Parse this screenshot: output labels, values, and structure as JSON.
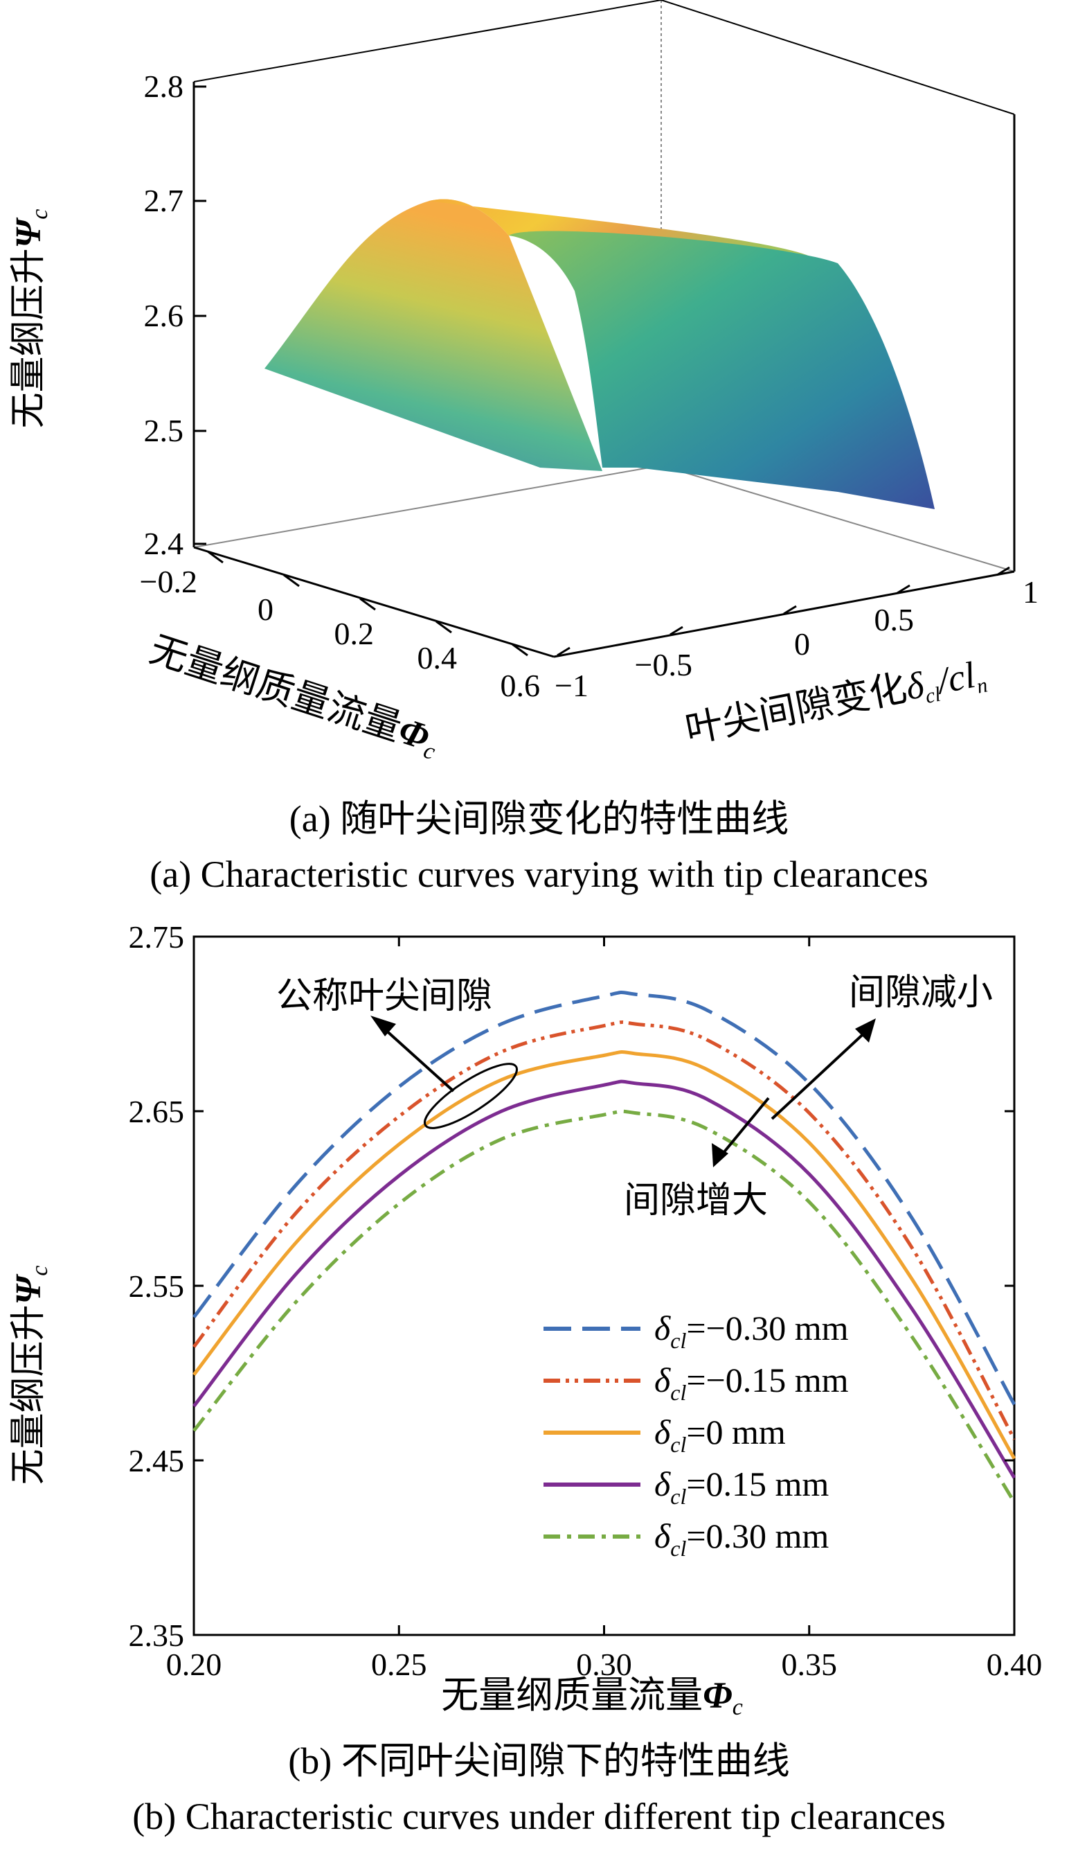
{
  "chart_data": [
    {
      "type": "surface",
      "ylabel": "无量纲压升",
      "ylabel_symbol": "Ψ",
      "ylabel_sub": "c",
      "x1label": "无量纲质量流量",
      "x1label_symbol": "Φ",
      "x1label_sub": "c",
      "x2label": "叶尖间隙变化",
      "x2label_symbol": "δ",
      "x2label_sub": "cl",
      "x2label_tail": "/cl",
      "x2label_tail_sub": "n",
      "zlim": [
        2.4,
        2.8
      ],
      "zticks": [
        "2.4",
        "2.5",
        "2.6",
        "2.7",
        "2.8"
      ],
      "flow_ticks": [
        "−0.2",
        "0",
        "0.2",
        "0.4",
        "0.6"
      ],
      "clearance_ticks": [
        "−1",
        "−0.5",
        "0",
        "0.5",
        "1"
      ],
      "colormap": [
        "#3b4fa0",
        "#2f8ea0",
        "#4fb98a",
        "#c9c94a",
        "#f5b03c",
        "#f2ea35"
      ],
      "caption_cn": "(a) 随叶尖间隙变化的特性曲线",
      "caption_en": "(a) Characteristic curves varying with tip clearances"
    },
    {
      "type": "line",
      "xlabel": "无量纲质量流量",
      "xlabel_symbol": "Φ",
      "xlabel_sub": "c",
      "ylabel": "无量纲压升",
      "ylabel_symbol": "Ψ",
      "ylabel_sub": "c",
      "xlim": [
        0.2,
        0.4
      ],
      "ylim": [
        2.35,
        2.75
      ],
      "xticks": [
        "0.20",
        "0.25",
        "0.30",
        "0.35",
        "0.40"
      ],
      "yticks": [
        "2.35",
        "2.45",
        "2.55",
        "2.65",
        "2.75"
      ],
      "x": [
        0.2,
        0.225,
        0.25,
        0.275,
        0.3,
        0.3075,
        0.325,
        0.35,
        0.375,
        0.4
      ],
      "series": [
        {
          "name": "=−0.30 mm",
          "color": "#3f6fb5",
          "dash": "dash",
          "values": [
            2.532,
            2.608,
            2.664,
            2.7,
            2.716,
            2.717,
            2.708,
            2.666,
            2.589,
            2.482
          ]
        },
        {
          "name": "=−0.15 mm",
          "color": "#d9532b",
          "dash": "dashdotdot",
          "values": [
            2.515,
            2.592,
            2.647,
            2.684,
            2.699,
            2.7,
            2.691,
            2.649,
            2.572,
            2.462
          ]
        },
        {
          "name": "=0 mm",
          "color": "#f0a32f",
          "dash": "solid",
          "values": [
            2.499,
            2.575,
            2.631,
            2.668,
            2.682,
            2.683,
            2.674,
            2.632,
            2.554,
            2.451
          ]
        },
        {
          "name": "=0.15 mm",
          "color": "#7d2c91",
          "dash": "solid",
          "values": [
            2.481,
            2.557,
            2.613,
            2.65,
            2.665,
            2.666,
            2.657,
            2.614,
            2.537,
            2.44
          ]
        },
        {
          "name": "=0.30 mm",
          "color": "#77ab43",
          "dash": "dashdot",
          "values": [
            2.467,
            2.541,
            2.597,
            2.634,
            2.648,
            2.649,
            2.64,
            2.598,
            2.521,
            2.426
          ]
        }
      ],
      "legend_symbol": "δ",
      "legend_sub": "cl",
      "legend_position": "bottom-right",
      "annotations": [
        "公称叶尖间隙",
        "间隙减小",
        "间隙增大"
      ],
      "caption_cn": "(b) 不同叶尖间隙下的特性曲线",
      "caption_en": "(b) Characteristic curves under different tip clearances"
    }
  ]
}
